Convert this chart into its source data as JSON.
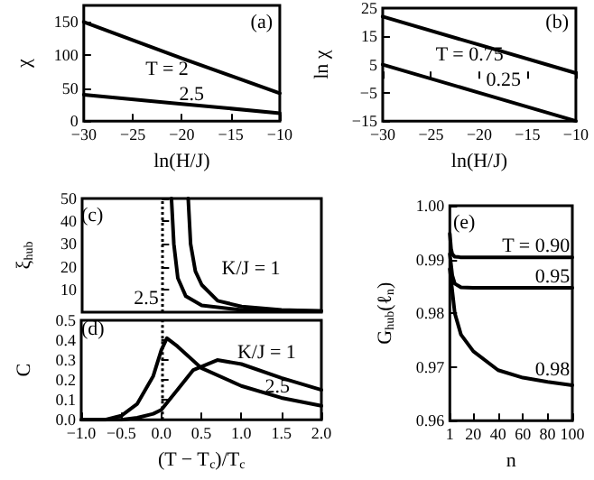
{
  "chart_data": [
    {
      "type": "line",
      "title": "(a)",
      "xlabel": "ln(H/J)",
      "ylabel": "χ",
      "xlim": [
        -30,
        -10
      ],
      "xticks": [
        {
          "value": -30,
          "label": "−30"
        },
        {
          "value": -25,
          "label": "−25"
        },
        {
          "value": -20,
          "label": "−20"
        },
        {
          "value": -15,
          "label": "−15"
        },
        {
          "value": -10,
          "label": "−10"
        }
      ],
      "ylim": [
        0,
        175
      ],
      "yticks": [
        0,
        50,
        100,
        150
      ],
      "marker": "none",
      "line_style": "solid",
      "grid": false,
      "series": [
        {
          "name": "T = 2",
          "color": "#000000",
          "x": [
            -30,
            -20,
            -10
          ],
          "values": [
            150,
            95,
            42
          ]
        },
        {
          "name": "2.5",
          "color": "#000000",
          "x": [
            -30,
            -20,
            -10
          ],
          "values": [
            40,
            26,
            12
          ]
        }
      ]
    },
    {
      "type": "line",
      "title": "(b)",
      "xlabel": "ln(H/J)",
      "ylabel": "ln χ",
      "xlim": [
        -30,
        -10
      ],
      "xticks": [
        {
          "value": -30,
          "label": "−30"
        },
        {
          "value": -25,
          "label": "−25"
        },
        {
          "value": -20,
          "label": "−20"
        },
        {
          "value": -15,
          "label": "−15"
        },
        {
          "value": -10,
          "label": "−10"
        }
      ],
      "ylim": [
        -15,
        25
      ],
      "yticks": [
        {
          "value": -15,
          "label": "−15"
        },
        {
          "value": -5,
          "label": "−5"
        },
        5,
        15,
        25
      ],
      "marker": "none",
      "line_style": "solid",
      "grid": false,
      "series": [
        {
          "name": "T = 0.75",
          "color": "#000000",
          "x": [
            -30,
            -20,
            -10
          ],
          "values": [
            22,
            12,
            2
          ]
        },
        {
          "name": "0.25",
          "color": "#000000",
          "x": [
            -30,
            -20,
            -10
          ],
          "values": [
            5,
            -5,
            -15
          ]
        }
      ]
    },
    {
      "type": "line",
      "title": "(c)",
      "ylabel": "ξ$_{hub}$",
      "xlim": [
        -1,
        2
      ],
      "ylim": [
        0,
        50
      ],
      "yticks": [
        10,
        20,
        30,
        40,
        50
      ],
      "tick_labels": "y",
      "marker": "none",
      "line_style": "solid",
      "grid": false,
      "ref_lines": [
        {
          "axis": "x",
          "value": 0,
          "color": "#000000",
          "line_style": "dotted"
        }
      ],
      "series": [
        {
          "name": "K/J = 1",
          "color": "#000000",
          "x": [
            0.33,
            0.36,
            0.42,
            0.5,
            0.7,
            1,
            1.5,
            2
          ],
          "values": [
            50,
            30,
            18,
            12,
            5,
            2.5,
            1,
            0.5
          ]
        },
        {
          "name": "2.5",
          "color": "#000000",
          "x": [
            0.12,
            0.15,
            0.2,
            0.3,
            0.5,
            1,
            1.5,
            2
          ],
          "values": [
            50,
            30,
            15,
            7,
            3,
            1,
            0.7,
            0.5
          ]
        }
      ]
    },
    {
      "type": "line",
      "title": "(d)",
      "xlabel": "(T − T$_{c}$)/T$_{c}$",
      "ylabel": "C",
      "xlim": [
        -1,
        2
      ],
      "xticks": [
        {
          "value": -1,
          "label": "−1.0"
        },
        {
          "value": -0.5,
          "label": "−0.5"
        },
        {
          "value": 0,
          "label": "0.0"
        },
        {
          "value": 0.5,
          "label": "0.5"
        },
        {
          "value": 1,
          "label": "1.0"
        },
        {
          "value": 1.5,
          "label": "1.5"
        },
        {
          "value": 2,
          "label": "2.0"
        }
      ],
      "ylim": [
        0,
        0.5
      ],
      "yticks": [
        {
          "value": 0,
          "label": "0.0"
        },
        0.1,
        0.2,
        0.3,
        0.4,
        0.5
      ],
      "marker": "none",
      "line_style": "solid",
      "grid": false,
      "ref_lines": [
        {
          "axis": "x",
          "value": 0,
          "color": "#000000",
          "line_style": "dotted"
        }
      ],
      "series": [
        {
          "name": "K/J = 1",
          "color": "#000000",
          "x": [
            -1,
            -0.5,
            -0.3,
            -0.1,
            0,
            0.2,
            0.4,
            0.7,
            1,
            1.5,
            2
          ],
          "values": [
            0,
            0,
            0.01,
            0.03,
            0.05,
            0.15,
            0.25,
            0.3,
            0.28,
            0.21,
            0.15
          ]
        },
        {
          "name": "2.5",
          "color": "#000000",
          "x": [
            -1,
            -0.7,
            -0.5,
            -0.3,
            -0.1,
            0,
            0.07,
            0.2,
            0.5,
            1,
            1.5,
            2
          ],
          "values": [
            0,
            0,
            0.02,
            0.08,
            0.22,
            0.35,
            0.41,
            0.37,
            0.26,
            0.17,
            0.11,
            0.07
          ]
        }
      ]
    },
    {
      "type": "line",
      "title": "(e)",
      "xlabel": "n",
      "ylabel": "G$_{hub}$(ℓ$_{n}$)",
      "xlim": [
        1,
        100
      ],
      "xticks": [
        1,
        20,
        40,
        60,
        80,
        100
      ],
      "ylim": [
        0.96,
        1
      ],
      "yticks": [
        {
          "value": 0.96,
          "label": "0.96"
        },
        {
          "value": 0.97,
          "label": "0.97"
        },
        {
          "value": 0.98,
          "label": "0.98"
        },
        {
          "value": 0.99,
          "label": "0.99"
        },
        {
          "value": 1,
          "label": "1.00"
        }
      ],
      "marker": "none",
      "line_style": "solid",
      "grid": false,
      "series": [
        {
          "name": "T = 0.90",
          "color": "#000000",
          "x": [
            1,
            2,
            3,
            5,
            10,
            100
          ],
          "values": [
            0.9948,
            0.992,
            0.991,
            0.9905,
            0.9904,
            0.9904
          ]
        },
        {
          "name": "0.95",
          "color": "#000000",
          "x": [
            1,
            3,
            5,
            10,
            20,
            100
          ],
          "values": [
            0.991,
            0.987,
            0.9855,
            0.9848,
            0.9847,
            0.9847
          ]
        },
        {
          "name": "0.98",
          "color": "#000000",
          "x": [
            1,
            5,
            10,
            20,
            40,
            60,
            80,
            100
          ],
          "values": [
            0.9882,
            0.98,
            0.976,
            0.9729,
            0.9694,
            0.968,
            0.9672,
            0.9666
          ]
        }
      ]
    }
  ]
}
